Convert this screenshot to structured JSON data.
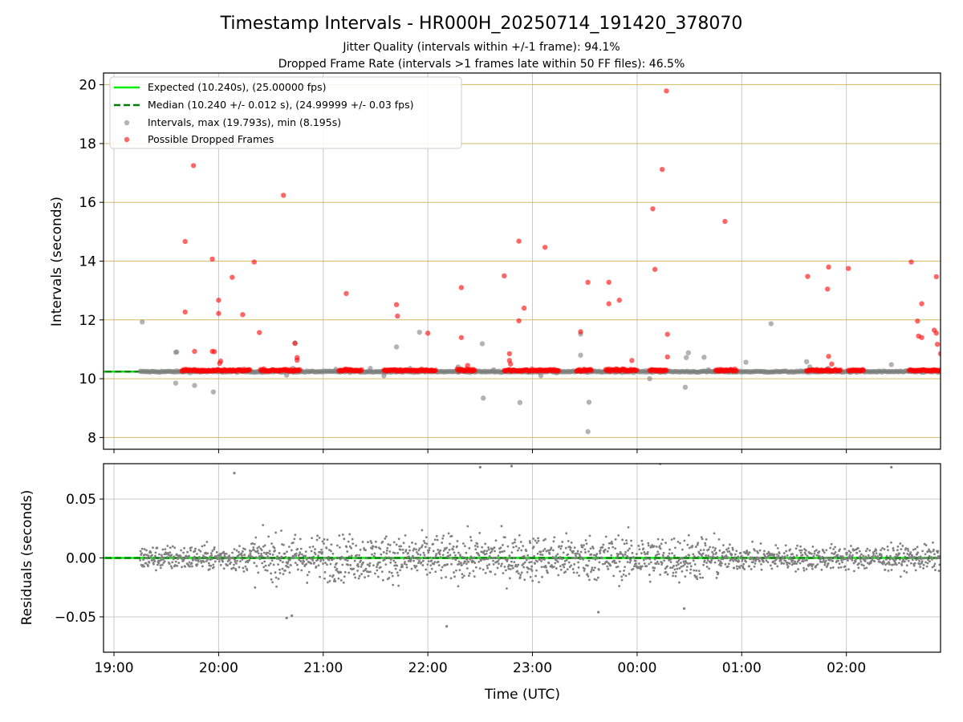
{
  "title": "Timestamp Intervals - HR000H_20250714_191420_378070",
  "subtitle_1": "Jitter Quality (intervals within +/-1 frame): 94.1%",
  "subtitle_2": "Dropped Frame Rate (intervals >1 frames late within 50 FF files): 46.5%",
  "xlabel": "Time (UTC)",
  "colors": {
    "expected": "#00ee00",
    "median": "#008000",
    "intervals": "#808080",
    "dropped": "#ff0000",
    "hgrid_top": "#d4b96a",
    "grid": "#c8c8c8"
  },
  "chart_data": [
    {
      "type": "scatter",
      "ylabel": "Intervals (seconds)",
      "xlim_hours": [
        18.9,
        26.9
      ],
      "ylim": [
        7.6,
        20.4
      ],
      "yticks": [
        8,
        10,
        12,
        14,
        16,
        18,
        20
      ],
      "ytick_labels": [
        "8",
        "10",
        "12",
        "14",
        "16",
        "18",
        "20"
      ],
      "grid": true,
      "legend_position": "upper-left",
      "reference_lines": [
        {
          "name": "Expected (10.240s), (25.00000 fps)",
          "y": 10.24,
          "style": "solid"
        },
        {
          "name": "Median (10.240 +/- 0.012 s), (24.99999 +/- 0.03 fps)",
          "y": 10.24,
          "style": "dashed"
        }
      ],
      "series": [
        {
          "name": "Intervals, max (19.793s), min (8.195s)",
          "baseline": {
            "x_range": [
              19.25,
              26.9
            ],
            "y": 10.24
          },
          "outliers": [
            [
              19.27,
              11.93
            ],
            [
              19.59,
              10.9
            ],
            [
              19.6,
              10.91
            ],
            [
              19.59,
              9.85
            ],
            [
              19.77,
              9.77
            ],
            [
              19.95,
              9.55
            ],
            [
              20.01,
              10.28
            ],
            [
              20.65,
              10.12
            ],
            [
              20.71,
              10.35
            ],
            [
              20.73,
              11.22
            ],
            [
              21.12,
              10.32
            ],
            [
              21.22,
              10.28
            ],
            [
              21.45,
              10.35
            ],
            [
              21.58,
              10.1
            ],
            [
              21.7,
              11.08
            ],
            [
              21.83,
              10.35
            ],
            [
              21.92,
              11.58
            ],
            [
              22.29,
              10.4
            ],
            [
              22.52,
              11.19
            ],
            [
              22.53,
              9.34
            ],
            [
              22.63,
              10.3
            ],
            [
              22.88,
              9.19
            ],
            [
              23.08,
              10.1
            ],
            [
              23.23,
              10.2
            ],
            [
              23.46,
              11.52
            ],
            [
              23.46,
              10.8
            ],
            [
              23.53,
              8.2
            ],
            [
              23.54,
              9.2
            ],
            [
              24.12,
              10.0
            ],
            [
              24.46,
              9.71
            ],
            [
              24.47,
              10.72
            ],
            [
              24.49,
              10.88
            ],
            [
              24.64,
              10.73
            ],
            [
              24.68,
              10.3
            ],
            [
              25.04,
              10.56
            ],
            [
              25.28,
              11.87
            ],
            [
              25.62,
              10.58
            ],
            [
              25.65,
              10.4
            ],
            [
              25.83,
              10.35
            ],
            [
              26.43,
              10.48
            ]
          ]
        },
        {
          "name": "Possible Dropped Frames",
          "clusters": [
            [
              19.65,
              20.3
            ],
            [
              20.4,
              20.78
            ],
            [
              21.15,
              21.37
            ],
            [
              21.58,
              21.97
            ],
            [
              21.97,
              22.08
            ],
            [
              22.28,
              22.45
            ],
            [
              22.73,
              23.25
            ],
            [
              23.42,
              23.57
            ],
            [
              23.7,
              24.0
            ],
            [
              24.12,
              24.28
            ],
            [
              24.75,
              24.95
            ],
            [
              25.62,
              25.72
            ],
            [
              25.72,
              25.95
            ],
            [
              26.02,
              26.17
            ],
            [
              26.6,
              26.9
            ]
          ],
          "cluster_y": 10.26,
          "points": [
            [
              19.68,
              14.67
            ],
            [
              19.68,
              12.27
            ],
            [
              19.76,
              17.25
            ],
            [
              19.77,
              10.93
            ],
            [
              19.94,
              14.07
            ],
            [
              19.94,
              10.93
            ],
            [
              19.96,
              10.92
            ],
            [
              20.0,
              12.67
            ],
            [
              20.0,
              12.22
            ],
            [
              20.01,
              10.52
            ],
            [
              20.02,
              10.6
            ],
            [
              20.13,
              13.45
            ],
            [
              20.23,
              12.18
            ],
            [
              20.34,
              13.97
            ],
            [
              20.39,
              11.57
            ],
            [
              20.62,
              16.24
            ],
            [
              20.73,
              11.2
            ],
            [
              20.75,
              10.72
            ],
            [
              20.75,
              10.63
            ],
            [
              21.22,
              12.9
            ],
            [
              21.7,
              12.52
            ],
            [
              21.71,
              12.13
            ],
            [
              22.0,
              11.55
            ],
            [
              22.32,
              13.1
            ],
            [
              22.32,
              11.4
            ],
            [
              22.38,
              10.45
            ],
            [
              22.73,
              13.5
            ],
            [
              22.78,
              10.85
            ],
            [
              22.78,
              10.62
            ],
            [
              22.79,
              10.5
            ],
            [
              22.87,
              14.68
            ],
            [
              22.87,
              11.97
            ],
            [
              22.92,
              12.4
            ],
            [
              23.12,
              14.47
            ],
            [
              23.46,
              11.6
            ],
            [
              23.53,
              13.28
            ],
            [
              23.73,
              13.28
            ],
            [
              23.73,
              12.55
            ],
            [
              23.83,
              12.67
            ],
            [
              23.95,
              10.62
            ],
            [
              24.15,
              15.78
            ],
            [
              24.17,
              13.72
            ],
            [
              24.24,
              17.12
            ],
            [
              24.28,
              19.79
            ],
            [
              24.29,
              11.51
            ],
            [
              24.29,
              10.74
            ],
            [
              24.84,
              15.35
            ],
            [
              25.63,
              13.48
            ],
            [
              25.83,
              13.8
            ],
            [
              25.82,
              13.05
            ],
            [
              25.83,
              10.76
            ],
            [
              25.86,
              10.5
            ],
            [
              26.02,
              13.75
            ],
            [
              26.62,
              13.97
            ],
            [
              26.68,
              11.96
            ],
            [
              26.72,
              12.55
            ],
            [
              26.69,
              11.45
            ],
            [
              26.72,
              11.4
            ],
            [
              26.84,
              11.65
            ],
            [
              26.86,
              13.47
            ],
            [
              26.86,
              11.55
            ],
            [
              26.87,
              11.17
            ],
            [
              26.9,
              10.85
            ]
          ]
        }
      ]
    },
    {
      "type": "scatter",
      "ylabel": "Residuals (seconds)",
      "xlabel": "Time (UTC)",
      "xlim_hours": [
        18.9,
        26.9
      ],
      "ylim": [
        -0.08,
        0.08
      ],
      "yticks": [
        -0.05,
        0,
        0.05
      ],
      "ytick_labels": [
        "−0.05",
        "0.00",
        "0.05"
      ],
      "xticks_hours": [
        19,
        20,
        21,
        22,
        23,
        24,
        25,
        26
      ],
      "xtick_labels": [
        "19:00",
        "20:00",
        "21:00",
        "22:00",
        "23:00",
        "00:00",
        "01:00",
        "02:00"
      ],
      "grid": true,
      "reference_line_y": 0,
      "residual_range": [
        19.25,
        26.9
      ],
      "residual_spread_seconds": 0.03,
      "notable_points": [
        [
          20.15,
          0.072
        ],
        [
          22.5,
          0.077
        ],
        [
          22.8,
          0.078
        ],
        [
          24.22,
          0.08
        ],
        [
          26.43,
          0.077
        ],
        [
          22.18,
          -0.058
        ],
        [
          20.65,
          -0.051
        ],
        [
          20.7,
          -0.049
        ],
        [
          23.63,
          -0.046
        ],
        [
          24.45,
          -0.043
        ]
      ]
    }
  ]
}
